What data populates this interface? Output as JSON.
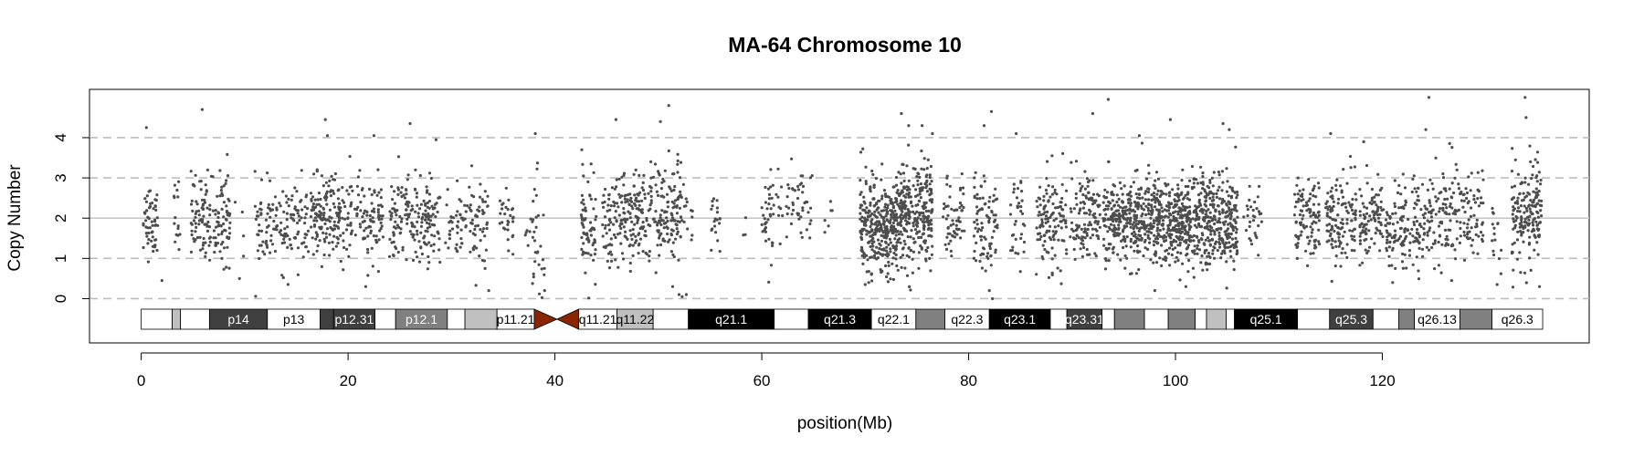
{
  "chart_data": {
    "type": "scatter",
    "title": "MA-64  Chromosome 10",
    "xlabel": "position(Mb)",
    "ylabel": "Copy Number",
    "xlim": [
      -5,
      140
    ],
    "ylim": [
      -1.1,
      5.2
    ],
    "x_ticks": [
      0,
      20,
      40,
      60,
      80,
      100,
      120
    ],
    "y_ticks": [
      0,
      1,
      2,
      3,
      4
    ],
    "dashed_gridlines_y": [
      0,
      1,
      3,
      4
    ],
    "solid_gridline_y": 2,
    "point_color": "#4d4d4d",
    "centromere_color": "#8b2500",
    "chromosome_end_mb": 135.5,
    "ideogram_bands": [
      {
        "name": "p15.3",
        "start": 0.0,
        "end": 3.0,
        "stain": "gneg",
        "label": ""
      },
      {
        "name": "p15.2",
        "start": 3.0,
        "end": 3.8,
        "stain": "gpos25",
        "label": ""
      },
      {
        "name": "p15.1",
        "start": 3.8,
        "end": 6.6,
        "stain": "gneg",
        "label": ""
      },
      {
        "name": "p14",
        "start": 6.6,
        "end": 12.2,
        "stain": "gpos75",
        "label": "p14"
      },
      {
        "name": "p13",
        "start": 12.2,
        "end": 17.3,
        "stain": "gneg",
        "label": "p13"
      },
      {
        "name": "p12.33",
        "start": 17.3,
        "end": 18.6,
        "stain": "gpos75",
        "label": ""
      },
      {
        "name": "p12.31",
        "start": 18.6,
        "end": 22.6,
        "stain": "gpos75",
        "label": "p12.31"
      },
      {
        "name": "p12.2",
        "start": 22.6,
        "end": 24.6,
        "stain": "gneg",
        "label": ""
      },
      {
        "name": "p12.1",
        "start": 24.6,
        "end": 29.6,
        "stain": "gpos50",
        "label": "p12.1"
      },
      {
        "name": "p11.23",
        "start": 29.6,
        "end": 31.3,
        "stain": "gneg",
        "label": ""
      },
      {
        "name": "p11.22",
        "start": 31.3,
        "end": 34.4,
        "stain": "gpos25",
        "label": ""
      },
      {
        "name": "p11.21",
        "start": 34.4,
        "end": 38.0,
        "stain": "gneg",
        "label": "p11.21"
      },
      {
        "name": "p11.1",
        "start": 38.0,
        "end": 40.2,
        "stain": "acen",
        "label": ""
      },
      {
        "name": "q11.1",
        "start": 40.2,
        "end": 42.3,
        "stain": "acen",
        "label": ""
      },
      {
        "name": "q11.21",
        "start": 42.3,
        "end": 46.0,
        "stain": "gneg",
        "label": "q11.21"
      },
      {
        "name": "q11.22",
        "start": 46.0,
        "end": 49.5,
        "stain": "gpos25",
        "label": "q11.22"
      },
      {
        "name": "q11.23",
        "start": 49.5,
        "end": 52.9,
        "stain": "gneg",
        "label": ""
      },
      {
        "name": "q21.1",
        "start": 52.9,
        "end": 61.2,
        "stain": "gpos100",
        "label": "q21.1"
      },
      {
        "name": "q21.2",
        "start": 61.2,
        "end": 64.5,
        "stain": "gneg",
        "label": ""
      },
      {
        "name": "q21.3",
        "start": 64.5,
        "end": 70.6,
        "stain": "gpos100",
        "label": "q21.3"
      },
      {
        "name": "q22.1",
        "start": 70.6,
        "end": 74.9,
        "stain": "gneg",
        "label": "q22.1"
      },
      {
        "name": "q22.2",
        "start": 74.9,
        "end": 77.7,
        "stain": "gpos50",
        "label": ""
      },
      {
        "name": "q22.3",
        "start": 77.7,
        "end": 82.0,
        "stain": "gneg",
        "label": "q22.3"
      },
      {
        "name": "q23.1",
        "start": 82.0,
        "end": 87.9,
        "stain": "gpos100",
        "label": "q23.1"
      },
      {
        "name": "q23.2",
        "start": 87.9,
        "end": 89.5,
        "stain": "gneg",
        "label": ""
      },
      {
        "name": "q23.31",
        "start": 89.5,
        "end": 92.9,
        "stain": "gpos75",
        "label": "q23.31"
      },
      {
        "name": "q23.32",
        "start": 92.9,
        "end": 94.1,
        "stain": "gneg",
        "label": ""
      },
      {
        "name": "q23.33",
        "start": 94.1,
        "end": 97.0,
        "stain": "gpos50",
        "label": ""
      },
      {
        "name": "q24.1",
        "start": 97.0,
        "end": 99.3,
        "stain": "gneg",
        "label": ""
      },
      {
        "name": "q24.2",
        "start": 99.3,
        "end": 101.9,
        "stain": "gpos50",
        "label": ""
      },
      {
        "name": "q24.31",
        "start": 101.9,
        "end": 103.0,
        "stain": "gneg",
        "label": ""
      },
      {
        "name": "q24.32",
        "start": 103.0,
        "end": 104.9,
        "stain": "gpos25",
        "label": ""
      },
      {
        "name": "q24.33",
        "start": 104.9,
        "end": 105.7,
        "stain": "gneg",
        "label": ""
      },
      {
        "name": "q25.1",
        "start": 105.7,
        "end": 111.8,
        "stain": "gpos100",
        "label": "q25.1"
      },
      {
        "name": "q25.2",
        "start": 111.8,
        "end": 114.9,
        "stain": "gneg",
        "label": ""
      },
      {
        "name": "q25.3",
        "start": 114.9,
        "end": 119.1,
        "stain": "gpos75",
        "label": "q25.3"
      },
      {
        "name": "q26.11",
        "start": 119.1,
        "end": 121.6,
        "stain": "gneg",
        "label": ""
      },
      {
        "name": "q26.12",
        "start": 121.6,
        "end": 123.1,
        "stain": "gpos50",
        "label": ""
      },
      {
        "name": "q26.13",
        "start": 123.1,
        "end": 127.5,
        "stain": "gneg",
        "label": "q26.13"
      },
      {
        "name": "q26.2",
        "start": 127.5,
        "end": 130.6,
        "stain": "gpos50",
        "label": ""
      },
      {
        "name": "q26.3",
        "start": 130.6,
        "end": 135.5,
        "stain": "gneg",
        "label": "q26.3"
      }
    ],
    "stain_colors": {
      "gneg": "#ffffff",
      "gpos25": "#c0c0c0",
      "gpos50": "#808080",
      "gpos75": "#404040",
      "gpos100": "#000000",
      "acen": "#8b2500"
    },
    "point_clusters": [
      {
        "x": [
          0.2,
          1.6
        ],
        "n": 55,
        "mean": 2.0,
        "sd": 0.45
      },
      {
        "x": [
          3.0,
          3.8
        ],
        "n": 15,
        "mean": 2.0,
        "sd": 0.5
      },
      {
        "x": [
          4.8,
          8.6
        ],
        "n": 150,
        "mean": 2.0,
        "sd": 0.55
      },
      {
        "x": [
          9.0,
          10.0
        ],
        "n": 4,
        "mean": 1.5,
        "sd": 0.6
      },
      {
        "x": [
          11.0,
          16.3
        ],
        "n": 140,
        "mean": 1.8,
        "sd": 0.5
      },
      {
        "x": [
          16.4,
          19.7
        ],
        "n": 150,
        "mean": 2.0,
        "sd": 0.5
      },
      {
        "x": [
          19.8,
          23.4
        ],
        "n": 110,
        "mean": 2.0,
        "sd": 0.5
      },
      {
        "x": [
          24.0,
          28.9
        ],
        "n": 180,
        "mean": 1.95,
        "sd": 0.5
      },
      {
        "x": [
          29.4,
          33.6
        ],
        "n": 100,
        "mean": 1.9,
        "sd": 0.55
      },
      {
        "x": [
          34.5,
          36.0
        ],
        "n": 30,
        "mean": 2.0,
        "sd": 0.45
      },
      {
        "x": [
          37.1,
          39.0
        ],
        "n": 35,
        "mean": 1.7,
        "sd": 0.7
      },
      {
        "x": [
          42.5,
          44.0
        ],
        "n": 70,
        "mean": 1.7,
        "sd": 0.7
      },
      {
        "x": [
          44.5,
          46.9
        ],
        "n": 90,
        "mean": 2.0,
        "sd": 0.55
      },
      {
        "x": [
          47.0,
          52.3
        ],
        "n": 230,
        "mean": 2.1,
        "sd": 0.6
      },
      {
        "x": [
          52.4,
          53.3
        ],
        "n": 12,
        "mean": 2.1,
        "sd": 0.45
      },
      {
        "x": [
          55.0,
          56.0
        ],
        "n": 20,
        "mean": 2.0,
        "sd": 0.4
      },
      {
        "x": [
          58.0,
          58.5
        ],
        "n": 3,
        "mean": 2.0,
        "sd": 0.3
      },
      {
        "x": [
          60.0,
          62.0
        ],
        "n": 45,
        "mean": 2.1,
        "sd": 0.45
      },
      {
        "x": [
          62.3,
          65.0
        ],
        "n": 45,
        "mean": 2.3,
        "sd": 0.45
      },
      {
        "x": [
          66.0,
          67.0
        ],
        "n": 6,
        "mean": 1.9,
        "sd": 0.3
      },
      {
        "x": [
          69.5,
          73.0
        ],
        "n": 310,
        "mean": 1.85,
        "sd": 0.55
      },
      {
        "x": [
          73.0,
          76.5
        ],
        "n": 290,
        "mean": 2.1,
        "sd": 0.6
      },
      {
        "x": [
          77.5,
          79.6
        ],
        "n": 60,
        "mean": 2.0,
        "sd": 0.5
      },
      {
        "x": [
          80.5,
          82.8
        ],
        "n": 85,
        "mean": 1.9,
        "sd": 0.6
      },
      {
        "x": [
          84.0,
          85.5
        ],
        "n": 35,
        "mean": 2.0,
        "sd": 0.5
      },
      {
        "x": [
          86.5,
          89.5
        ],
        "n": 120,
        "mean": 1.9,
        "sd": 0.6
      },
      {
        "x": [
          89.8,
          92.7
        ],
        "n": 115,
        "mean": 2.0,
        "sd": 0.55
      },
      {
        "x": [
          93.0,
          97.5
        ],
        "n": 300,
        "mean": 1.95,
        "sd": 0.5
      },
      {
        "x": [
          97.6,
          101.5
        ],
        "n": 330,
        "mean": 1.95,
        "sd": 0.5
      },
      {
        "x": [
          101.6,
          106.0
        ],
        "n": 340,
        "mean": 1.95,
        "sd": 0.55
      },
      {
        "x": [
          106.5,
          108.5
        ],
        "n": 30,
        "mean": 2.0,
        "sd": 0.45
      },
      {
        "x": [
          111.5,
          114.0
        ],
        "n": 100,
        "mean": 2.0,
        "sd": 0.5
      },
      {
        "x": [
          114.5,
          117.5
        ],
        "n": 125,
        "mean": 2.0,
        "sd": 0.55
      },
      {
        "x": [
          117.8,
          120.2
        ],
        "n": 90,
        "mean": 1.95,
        "sd": 0.5
      },
      {
        "x": [
          120.3,
          122.7
        ],
        "n": 90,
        "mean": 1.8,
        "sd": 0.5
      },
      {
        "x": [
          122.8,
          125.3
        ],
        "n": 90,
        "mean": 2.0,
        "sd": 0.55
      },
      {
        "x": [
          125.4,
          127.7
        ],
        "n": 80,
        "mean": 2.1,
        "sd": 0.55
      },
      {
        "x": [
          127.8,
          129.8
        ],
        "n": 60,
        "mean": 2.0,
        "sd": 0.5
      },
      {
        "x": [
          130.5,
          131.5
        ],
        "n": 15,
        "mean": 1.7,
        "sd": 0.6
      },
      {
        "x": [
          132.5,
          135.4
        ],
        "n": 170,
        "mean": 2.1,
        "sd": 0.6
      }
    ],
    "outliers": [
      [
        0.5,
        4.25
      ],
      [
        5.9,
        4.7
      ],
      [
        17.8,
        4.45
      ],
      [
        18.0,
        4.05
      ],
      [
        22.5,
        4.05
      ],
      [
        26.0,
        4.35
      ],
      [
        28.5,
        3.95
      ],
      [
        38.1,
        4.1
      ],
      [
        42.6,
        3.7
      ],
      [
        45.9,
        4.45
      ],
      [
        50.2,
        4.4
      ],
      [
        51.0,
        4.8
      ],
      [
        52.0,
        0.1
      ],
      [
        52.7,
        0.1
      ],
      [
        52.3,
        0.05
      ],
      [
        73.5,
        4.6
      ],
      [
        74.2,
        4.3
      ],
      [
        75.5,
        4.3
      ],
      [
        76.5,
        4.1
      ],
      [
        81.5,
        4.3
      ],
      [
        82.0,
        0.2
      ],
      [
        82.3,
        0.0
      ],
      [
        82.2,
        4.65
      ],
      [
        84.6,
        4.1
      ],
      [
        92.0,
        4.6
      ],
      [
        93.5,
        4.95
      ],
      [
        96.5,
        4.05
      ],
      [
        99.5,
        4.45
      ],
      [
        104.6,
        4.35
      ],
      [
        105.2,
        4.2
      ],
      [
        115.0,
        4.1
      ],
      [
        118.2,
        3.9
      ],
      [
        124.5,
        5.0
      ],
      [
        124.2,
        4.2
      ],
      [
        133.8,
        5.0
      ],
      [
        133.9,
        4.5
      ],
      [
        2.0,
        0.45
      ],
      [
        9.5,
        0.5
      ],
      [
        21.7,
        0.3
      ],
      [
        33.6,
        0.2
      ],
      [
        39.0,
        0.2
      ],
      [
        70.0,
        0.35
      ],
      [
        98.0,
        0.2
      ],
      [
        101.0,
        0.3
      ],
      [
        121.0,
        0.4
      ],
      [
        126.7,
        0.45
      ],
      [
        131.1,
        0.35
      ],
      [
        135.2,
        0.3
      ]
    ]
  }
}
